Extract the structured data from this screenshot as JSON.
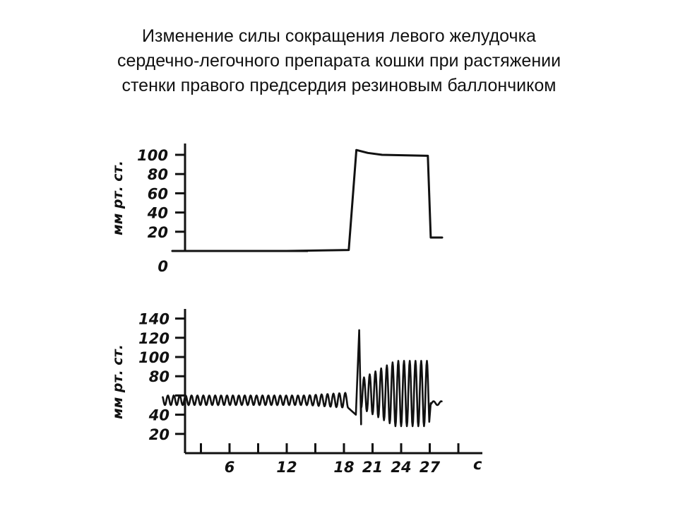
{
  "title": {
    "line1": "Изменение силы сокращения левого желудочка",
    "line2": "сердечно-легочного препарата кошки при растяжении",
    "line3": "стенки правого предсердия резиновым баллончиком"
  },
  "chart_data": [
    {
      "type": "line",
      "ylabel": "мм рт. ст.",
      "ylim": [
        0,
        100
      ],
      "yticks": [
        "0",
        "20",
        "40",
        "60",
        "80",
        "100"
      ],
      "x_unit": "с",
      "series": [
        {
          "x": [
            0,
            12,
            18.5,
            19.3,
            20.5,
            22,
            26.8,
            27.1,
            28.3
          ],
          "values": [
            0,
            0,
            1,
            105,
            102,
            100,
            99,
            14,
            14
          ]
        }
      ]
    },
    {
      "type": "line",
      "ylabel": "мм рт. ст.",
      "ylim": [
        0,
        140
      ],
      "yticks": [
        "20",
        "40",
        "80",
        "100",
        "120",
        "140"
      ],
      "xticks": [
        "6",
        "12",
        "18",
        "21",
        "24",
        "27"
      ],
      "x_unit": "с",
      "baseline": {
        "x_end": 18.5,
        "center": 55,
        "amplitude": 5
      },
      "peak": {
        "x": 19.6,
        "value": 128
      },
      "oscillation": {
        "x_start": 18.8,
        "x_end": 27.0,
        "max": 96,
        "min": 28
      },
      "tail": {
        "x_start": 27.1,
        "x_end": 28.3,
        "value": 52
      }
    }
  ]
}
